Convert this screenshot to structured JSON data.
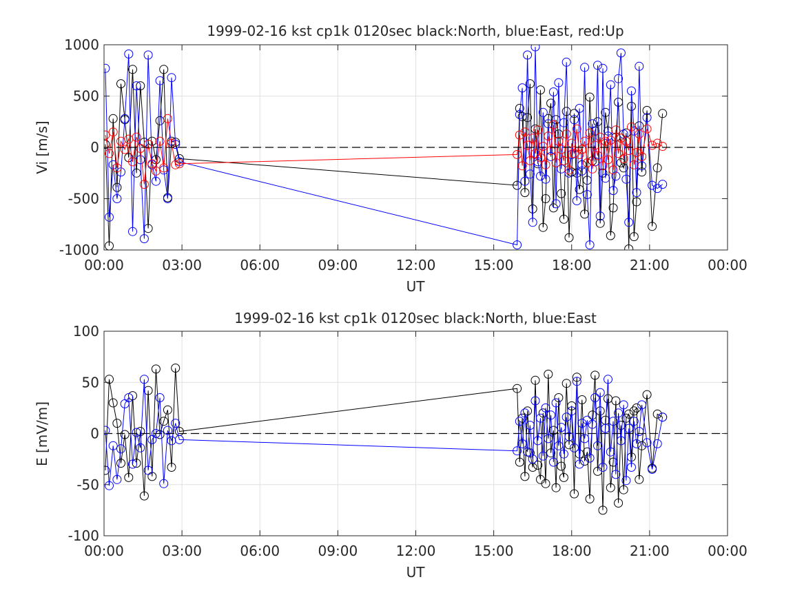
{
  "chart_data": [
    {
      "type": "line",
      "title": "1999-02-16 kst cp1k 0120sec black:North, blue:East, red:Up",
      "xlabel": "UT",
      "ylabel": "Vi [m/s]",
      "xlim": [
        0,
        24
      ],
      "ylim": [
        -1000,
        1000
      ],
      "xticks": [
        "00:00",
        "03:00",
        "06:00",
        "09:00",
        "12:00",
        "15:00",
        "18:00",
        "21:00",
        "00:00"
      ],
      "yticks": [
        "-1000",
        "-500",
        "0",
        "500",
        "1000"
      ],
      "ytick_values": [
        -1000,
        -500,
        0,
        500,
        1000
      ],
      "grid": true,
      "zero_line": "dashed",
      "series": [
        {
          "color": "#000000",
          "x": [
            0.05,
            0.2,
            0.35,
            0.5,
            0.65,
            0.8,
            0.95,
            1.1,
            1.25,
            1.4,
            1.55,
            1.7,
            1.85,
            2.0,
            2.15,
            2.3,
            2.45,
            2.6,
            2.75,
            2.9,
            15.9,
            16.0,
            16.1,
            16.2,
            16.3,
            16.4,
            16.5,
            16.6,
            16.7,
            16.8,
            16.9,
            17.0,
            17.1,
            17.2,
            17.3,
            17.4,
            17.5,
            17.6,
            17.7,
            17.8,
            17.9,
            18.0,
            18.1,
            18.2,
            18.3,
            18.4,
            18.5,
            18.6,
            18.7,
            18.8,
            18.9,
            19.0,
            19.1,
            19.2,
            19.3,
            19.4,
            19.5,
            19.6,
            19.7,
            19.8,
            19.9,
            20.0,
            20.1,
            20.2,
            20.3,
            20.4,
            20.5,
            20.6,
            20.7,
            20.9,
            21.1,
            21.3,
            21.5
          ],
          "y": [
            30,
            -960,
            280,
            -390,
            620,
            270,
            -100,
            760,
            -250,
            600,
            50,
            -790,
            60,
            -120,
            260,
            760,
            -490,
            60,
            50,
            -110,
            -370,
            380,
            300,
            -440,
            290,
            620,
            -600,
            180,
            -160,
            560,
            -780,
            -500,
            280,
            430,
            -590,
            270,
            130,
            -450,
            -700,
            350,
            -880,
            -240,
            330,
            -250,
            -410,
            -170,
            -650,
            -320,
            490,
            -130,
            160,
            250,
            -740,
            -250,
            340,
            160,
            -860,
            -590,
            100,
            440,
            -150,
            -200,
            140,
            -990,
            400,
            -870,
            -530,
            210,
            -240,
            360,
            -770,
            -200,
            330
          ]
        },
        {
          "color": "#0000ff",
          "x": [
            0.05,
            0.2,
            0.35,
            0.5,
            0.65,
            0.8,
            0.95,
            1.1,
            1.25,
            1.4,
            1.55,
            1.7,
            1.85,
            2.0,
            2.15,
            2.3,
            2.45,
            2.6,
            2.75,
            2.9,
            15.9,
            16.0,
            16.1,
            16.2,
            16.3,
            16.4,
            16.5,
            16.6,
            16.7,
            16.8,
            16.9,
            17.0,
            17.1,
            17.2,
            17.3,
            17.4,
            17.5,
            17.6,
            17.7,
            17.8,
            17.9,
            18.0,
            18.1,
            18.2,
            18.3,
            18.4,
            18.5,
            18.6,
            18.7,
            18.8,
            18.9,
            19.0,
            19.1,
            19.2,
            19.3,
            19.4,
            19.5,
            19.6,
            19.7,
            19.8,
            19.9,
            20.0,
            20.1,
            20.2,
            20.3,
            20.4,
            20.5,
            20.6,
            20.7,
            20.9,
            21.1,
            21.3,
            21.5
          ],
          "y": [
            770,
            -680,
            -170,
            -500,
            -240,
            280,
            910,
            -820,
            600,
            -120,
            -890,
            900,
            -170,
            -330,
            650,
            -220,
            -500,
            680,
            30,
            -140,
            -950,
            320,
            580,
            -330,
            900,
            -260,
            -730,
            980,
            -140,
            -280,
            340,
            -310,
            230,
            -90,
            540,
            -550,
            630,
            -210,
            240,
            830,
            -250,
            -70,
            270,
            -520,
            380,
            -230,
            780,
            -460,
            -950,
            230,
            -140,
            800,
            -670,
            770,
            -300,
            110,
            610,
            -420,
            -280,
            670,
            920,
            130,
            -310,
            -730,
            550,
            160,
            -440,
            790,
            -180,
            290,
            -370,
            -400,
            -360
          ]
        },
        {
          "color": "#ff0000",
          "x": [
            0.05,
            0.2,
            0.35,
            0.5,
            0.65,
            0.8,
            0.95,
            1.1,
            1.25,
            1.4,
            1.55,
            1.7,
            1.85,
            2.0,
            2.15,
            2.3,
            2.45,
            2.6,
            2.75,
            2.9,
            15.9,
            16.0,
            16.1,
            16.2,
            16.3,
            16.4,
            16.5,
            16.6,
            16.7,
            16.8,
            16.9,
            17.0,
            17.1,
            17.2,
            17.3,
            17.4,
            17.5,
            17.6,
            17.7,
            17.8,
            17.9,
            18.0,
            18.1,
            18.2,
            18.3,
            18.4,
            18.5,
            18.6,
            18.7,
            18.8,
            18.9,
            19.0,
            19.1,
            19.2,
            19.3,
            19.4,
            19.5,
            19.6,
            19.7,
            19.8,
            19.9,
            20.0,
            20.1,
            20.2,
            20.3,
            20.4,
            20.5,
            20.6,
            20.7,
            20.9,
            21.1,
            21.3,
            21.5
          ],
          "y": [
            120,
            -60,
            150,
            -200,
            60,
            -20,
            80,
            -140,
            100,
            -10,
            -360,
            30,
            -160,
            -230,
            60,
            -200,
            280,
            40,
            -170,
            -160,
            -70,
            120,
            -180,
            150,
            20,
            -130,
            90,
            -60,
            170,
            -100,
            10,
            -170,
            110,
            -30,
            220,
            -150,
            60,
            -20,
            -130,
            130,
            -220,
            40,
            -60,
            180,
            -70,
            -20,
            60,
            -150,
            140,
            -210,
            20,
            -80,
            100,
            -180,
            60,
            -120,
            70,
            -220,
            170,
            -60,
            90,
            -110,
            60,
            -30,
            200,
            -170,
            -50,
            130,
            -90,
            180,
            20,
            40,
            10
          ]
        }
      ]
    },
    {
      "type": "line",
      "title": "1999-02-16 kst cp1k 0120sec black:North, blue:East",
      "xlabel": "UT",
      "ylabel": "E [mV/m]",
      "xlim": [
        0,
        24
      ],
      "ylim": [
        -100,
        100
      ],
      "xticks": [
        "00:00",
        "03:00",
        "06:00",
        "09:00",
        "12:00",
        "15:00",
        "18:00",
        "21:00",
        "00:00"
      ],
      "yticks": [
        "-100",
        "-50",
        "0",
        "50",
        "100"
      ],
      "ytick_values": [
        -100,
        -50,
        0,
        50,
        100
      ],
      "grid": true,
      "zero_line": "dashed",
      "series": [
        {
          "color": "#000000",
          "x": [
            0.05,
            0.2,
            0.35,
            0.5,
            0.65,
            0.8,
            0.95,
            1.1,
            1.25,
            1.4,
            1.55,
            1.7,
            1.85,
            2.0,
            2.15,
            2.3,
            2.45,
            2.6,
            2.75,
            2.9,
            15.9,
            16.0,
            16.1,
            16.2,
            16.3,
            16.4,
            16.5,
            16.6,
            16.7,
            16.8,
            16.9,
            17.0,
            17.1,
            17.2,
            17.3,
            17.4,
            17.5,
            17.6,
            17.7,
            17.8,
            17.9,
            18.0,
            18.1,
            18.2,
            18.3,
            18.4,
            18.5,
            18.6,
            18.7,
            18.8,
            18.9,
            19.0,
            19.1,
            19.2,
            19.3,
            19.4,
            19.5,
            19.6,
            19.7,
            19.8,
            19.9,
            20.0,
            20.1,
            20.2,
            20.3,
            20.4,
            20.5,
            20.6,
            20.7,
            20.9,
            21.1,
            21.3,
            21.5
          ],
          "y": [
            -36,
            53,
            30,
            10,
            -29,
            -1,
            -43,
            37,
            -29,
            2,
            -61,
            42,
            -42,
            63,
            -1,
            12,
            23,
            -33,
            64,
            2,
            44,
            -28,
            15,
            -42,
            22,
            -19,
            -33,
            52,
            -31,
            -45,
            20,
            -49,
            58,
            -19,
            3,
            -53,
            35,
            -32,
            -43,
            49,
            -11,
            27,
            -59,
            55,
            -20,
            33,
            -27,
            -18,
            -64,
            18,
            57,
            -37,
            22,
            -75,
            13,
            34,
            -53,
            -28,
            32,
            -68,
            8,
            -55,
            15,
            19,
            -23,
            22,
            25,
            -45,
            -12,
            38,
            -34,
            19,
            16
          ]
        },
        {
          "color": "#0000ff",
          "x": [
            0.05,
            0.2,
            0.35,
            0.5,
            0.65,
            0.8,
            0.95,
            1.1,
            1.25,
            1.4,
            1.55,
            1.7,
            1.85,
            2.0,
            2.15,
            2.3,
            2.45,
            2.6,
            2.75,
            2.9,
            15.9,
            16.0,
            16.1,
            16.2,
            16.3,
            16.4,
            16.5,
            16.6,
            16.7,
            16.8,
            16.9,
            17.0,
            17.1,
            17.2,
            17.3,
            17.4,
            17.5,
            17.6,
            17.7,
            17.8,
            17.9,
            18.0,
            18.1,
            18.2,
            18.3,
            18.4,
            18.5,
            18.6,
            18.7,
            18.8,
            18.9,
            19.0,
            19.1,
            19.2,
            19.3,
            19.4,
            19.5,
            19.6,
            19.7,
            19.8,
            19.9,
            20.0,
            20.1,
            20.2,
            20.3,
            20.4,
            20.5,
            20.6,
            20.7,
            20.9,
            21.1,
            21.3,
            21.5
          ],
          "y": [
            3,
            -51,
            -12,
            -45,
            -15,
            29,
            35,
            -30,
            1,
            -14,
            53,
            -36,
            -6,
            0,
            35,
            -49,
            3,
            -7,
            10,
            -6,
            -17,
            12,
            -10,
            20,
            -18,
            8,
            -25,
            32,
            -7,
            15,
            -22,
            25,
            -5,
            18,
            -28,
            30,
            -12,
            6,
            -20,
            16,
            -3,
            22,
            -14,
            51,
            -30,
            10,
            -5,
            13,
            -24,
            9,
            35,
            -12,
            40,
            -33,
            5,
            53,
            -18,
            12,
            -40,
            20,
            -7,
            28,
            -46,
            5,
            -33,
            12,
            -10,
            2,
            28,
            -9,
            -35,
            -10,
            16
          ]
        }
      ]
    }
  ]
}
